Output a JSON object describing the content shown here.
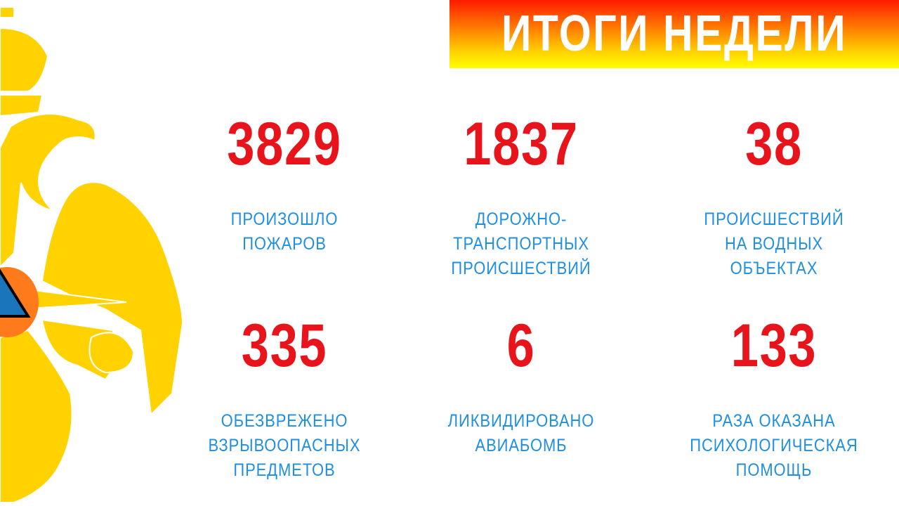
{
  "header": {
    "title": "ИТОГИ НЕДЕЛИ"
  },
  "colors": {
    "number": "#e8141c",
    "label": "#1f8fe0",
    "emblem_gold": "#ffd200",
    "emblem_orange": "#ff7a1a",
    "emblem_blue": "#1b75bb"
  },
  "emblem": {
    "icon": "emercom-eagle-emblem-icon"
  },
  "stats": [
    {
      "value": "3829",
      "label": "ПРОИЗОШЛО\nПОЖАРОВ"
    },
    {
      "value": "1837",
      "label": "ДОРОЖНО-\nТРАНСПОРТНЫХ\nПРОИСШЕСТВИЙ"
    },
    {
      "value": "38",
      "label": "ПРОИСШЕСТВИЙ\nНА ВОДНЫХ\nОБЪЕКТАХ"
    },
    {
      "value": "335",
      "label": "ОБЕЗВРЕЖЕНО\nВЗРЫВООПАСНЫХ\nПРЕДМЕТОВ"
    },
    {
      "value": "6",
      "label": "ЛИКВИДИРОВАНО\nАВИАБОМБ"
    },
    {
      "value": "133",
      "label": "РАЗА ОКАЗАНА\nПСИХОЛОГИЧЕСКАЯ\nПОМОЩЬ"
    }
  ]
}
